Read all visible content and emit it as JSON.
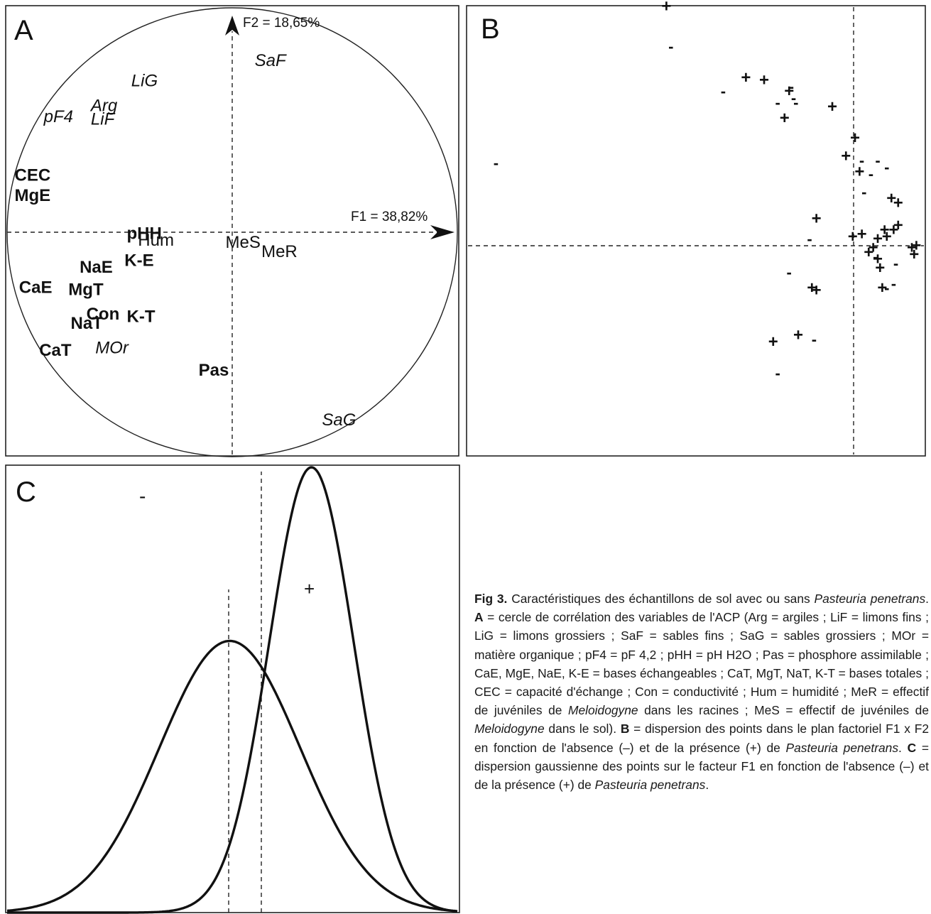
{
  "panels": {
    "a": {
      "letter": "A",
      "axis_f1_label": "F1 = 38,82%",
      "axis_f2_label": "F2 = 18,65%",
      "variables": [
        {
          "name": "SaF",
          "style": "italic"
        },
        {
          "name": "LiG",
          "style": "italic"
        },
        {
          "name": "Arg",
          "style": "italic"
        },
        {
          "name": "pF4",
          "style": "italic"
        },
        {
          "name": "LiF",
          "style": "italic"
        },
        {
          "name": "CEC",
          "style": "bold"
        },
        {
          "name": "MgE",
          "style": "bold"
        },
        {
          "name": "pHH",
          "style": "bold"
        },
        {
          "name": "Hum",
          "style": "normal"
        },
        {
          "name": "MeS",
          "style": "normal"
        },
        {
          "name": "MeR",
          "style": "normal"
        },
        {
          "name": "NaE",
          "style": "bold"
        },
        {
          "name": "K-E",
          "style": "bold"
        },
        {
          "name": "CaE",
          "style": "bold"
        },
        {
          "name": "MgT",
          "style": "bold"
        },
        {
          "name": "Con",
          "style": "bold"
        },
        {
          "name": "NaT",
          "style": "bold"
        },
        {
          "name": "K-T",
          "style": "bold"
        },
        {
          "name": "CaT",
          "style": "bold"
        },
        {
          "name": "MOr",
          "style": "italic"
        },
        {
          "name": "Pas",
          "style": "bold"
        },
        {
          "name": "SaG",
          "style": "italic"
        }
      ]
    },
    "b": {
      "letter": "B",
      "presence_symbol": "+",
      "absence_symbol": "-"
    },
    "c": {
      "letter": "C",
      "presence_symbol": "+",
      "absence_symbol": "-"
    }
  },
  "caption": {
    "fig_label": "Fig 3.",
    "intro": " Caractéristiques des échantillons de sol avec ou sans ",
    "species": "Pasteuria penetrans",
    "a_label": "A",
    "a_text_1": " = cercle de corrélation des variables de l'ACP (Arg = argiles ; LiF = limons fins ; LiG = limons grossiers ; SaF = sables fins ; SaG = sables grossiers ; MOr = matière organique ; pF4 = pF 4,2 ; pHH = pH H2O ; Pas = phosphore assimilable ; CaE, MgE, NaE, K-E = bases échangeables ; CaT, MgT, NaT, K-T = bases totales ; CEC = capacité d'échange ; Con  = conductivité ; Hum = humidité ; MeR = effectif de juvéniles de ",
    "genus": "Meloidogyne",
    "a_text_2": " dans les racines ; MeS = effectif de juvéniles de ",
    "a_text_3": " dans le sol). ",
    "b_label": "B",
    "b_text_1": " = dispersion des points dans le plan factoriel F1 x F2 en fonction de l'absence (–) et de la présence (+) de ",
    "b_text_2": ". ",
    "c_label": "C",
    "c_text_1": " = dispersion gaussienne des points sur le facteur F1 en fonction de l'absence (–) et de la présence (+) de ",
    "c_text_2": "."
  },
  "chart_data": [
    {
      "type": "scatter",
      "panel": "A",
      "title": "",
      "xlabel": "F1 = 38,82%",
      "ylabel": "F2 = 18,65%",
      "xlim": [
        -1,
        1
      ],
      "ylim": [
        -1,
        1
      ],
      "correlation_circle": true,
      "points": [
        {
          "label": "SaF",
          "x": 0.1,
          "y": 0.74
        },
        {
          "label": "LiG",
          "x": -0.45,
          "y": 0.65
        },
        {
          "label": "Arg",
          "x": -0.63,
          "y": 0.54
        },
        {
          "label": "pF4",
          "x": -0.84,
          "y": 0.49
        },
        {
          "label": "LiF",
          "x": -0.63,
          "y": 0.48
        },
        {
          "label": "CEC",
          "x": -0.97,
          "y": 0.23
        },
        {
          "label": "MgE",
          "x": -0.97,
          "y": 0.14
        },
        {
          "label": "pHH",
          "x": -0.47,
          "y": -0.03
        },
        {
          "label": "Hum",
          "x": -0.42,
          "y": -0.06
        },
        {
          "label": "MeS",
          "x": -0.03,
          "y": -0.07
        },
        {
          "label": "MeR",
          "x": 0.13,
          "y": -0.11
        },
        {
          "label": "NaE",
          "x": -0.68,
          "y": -0.18
        },
        {
          "label": "K-E",
          "x": -0.48,
          "y": -0.15
        },
        {
          "label": "CaE",
          "x": -0.95,
          "y": -0.27
        },
        {
          "label": "MgT",
          "x": -0.73,
          "y": -0.28
        },
        {
          "label": "Con",
          "x": -0.65,
          "y": -0.39
        },
        {
          "label": "NaT",
          "x": -0.72,
          "y": -0.43
        },
        {
          "label": "K-T",
          "x": -0.47,
          "y": -0.4
        },
        {
          "label": "CaT",
          "x": -0.86,
          "y": -0.55
        },
        {
          "label": "MOr",
          "x": -0.61,
          "y": -0.54
        },
        {
          "label": "Pas",
          "x": -0.15,
          "y": -0.64
        },
        {
          "label": "SaG",
          "x": 0.4,
          "y": -0.86
        }
      ]
    },
    {
      "type": "scatter",
      "panel": "B",
      "title": "",
      "xlabel": "",
      "ylabel": "",
      "xlim": [
        -1,
        1
      ],
      "ylim": [
        -1,
        1
      ],
      "series": [
        {
          "name": "+",
          "points": [
            [
              -0.13,
              0.98
            ],
            [
              0.22,
              0.66
            ],
            [
              0.3,
              0.65
            ],
            [
              0.39,
              0.48
            ],
            [
              0.41,
              0.6
            ],
            [
              0.6,
              0.53
            ],
            [
              0.53,
              0.03
            ],
            [
              0.7,
              0.39
            ],
            [
              0.66,
              0.31
            ],
            [
              0.72,
              0.24
            ],
            [
              0.86,
              0.12
            ],
            [
              0.89,
              0.1
            ],
            [
              0.83,
              -0.02
            ],
            [
              0.8,
              -0.06
            ],
            [
              0.84,
              -0.05
            ],
            [
              0.87,
              -0.02
            ],
            [
              0.89,
              0.0
            ],
            [
              0.69,
              -0.05
            ],
            [
              0.73,
              -0.04
            ],
            [
              0.76,
              -0.12
            ],
            [
              0.78,
              -0.1
            ],
            [
              0.8,
              -0.15
            ],
            [
              0.81,
              -0.19
            ],
            [
              0.95,
              -0.1
            ],
            [
              0.96,
              -0.13
            ],
            [
              0.97,
              -0.09
            ],
            [
              0.82,
              -0.28
            ],
            [
              0.51,
              -0.28
            ],
            [
              0.53,
              -0.29
            ],
            [
              0.34,
              -0.52
            ],
            [
              0.45,
              -0.49
            ]
          ]
        },
        {
          "name": "-",
          "points": [
            [
              -0.88,
              0.28
            ],
            [
              0.42,
              0.62
            ],
            [
              0.43,
              0.57
            ],
            [
              0.44,
              0.55
            ],
            [
              0.36,
              0.55
            ],
            [
              0.12,
              0.6
            ],
            [
              0.8,
              0.29
            ],
            [
              0.77,
              0.23
            ],
            [
              0.73,
              0.29
            ],
            [
              0.84,
              0.26
            ],
            [
              0.74,
              0.15
            ],
            [
              0.79,
              -0.14
            ],
            [
              0.88,
              -0.17
            ],
            [
              0.84,
              -0.28
            ],
            [
              0.87,
              -0.26
            ],
            [
              0.5,
              -0.06
            ],
            [
              0.41,
              -0.21
            ],
            [
              0.52,
              -0.51
            ],
            [
              0.36,
              -0.66
            ],
            [
              -0.11,
              0.8
            ]
          ]
        }
      ]
    },
    {
      "type": "line",
      "panel": "C",
      "title": "",
      "xlabel": "",
      "ylabel": "",
      "series": [
        {
          "name": "+",
          "distribution": "gaussian",
          "mean": 0.58,
          "sd": 0.15,
          "relative_peak": 1.0
        },
        {
          "name": "-",
          "distribution": "gaussian",
          "mean": 0.29,
          "sd": 0.25,
          "relative_peak": 0.61
        }
      ]
    }
  ]
}
